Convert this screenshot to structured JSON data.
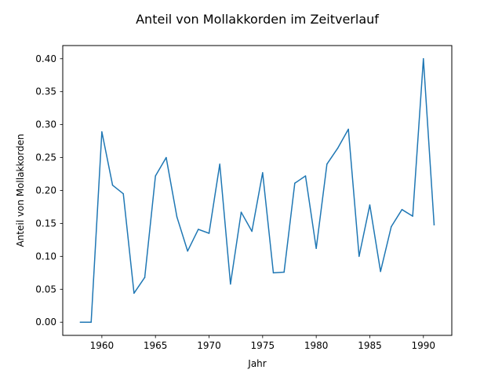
{
  "chart_data": {
    "type": "line",
    "title": "Anteil von Mollakkorden im Zeitverlauf",
    "xlabel": "Jahr",
    "ylabel": "Anteil von Mollakkorden",
    "xlim": [
      1956.35,
      1992.65
    ],
    "ylim": [
      -0.02,
      0.42
    ],
    "xticks": [
      1960,
      1965,
      1970,
      1975,
      1980,
      1985,
      1990
    ],
    "yticks": [
      0.0,
      0.05,
      0.1,
      0.15,
      0.2,
      0.25,
      0.3,
      0.35,
      0.4
    ],
    "ytick_labels": [
      "0.00",
      "0.05",
      "0.10",
      "0.15",
      "0.20",
      "0.25",
      "0.30",
      "0.35",
      "0.40"
    ],
    "grid": false,
    "colors": {
      "line": "#1f77b4"
    },
    "series": [
      {
        "x": [
          1958,
          1959,
          1960,
          1961,
          1962,
          1963,
          1964,
          1965,
          1966,
          1967,
          1968,
          1969,
          1970,
          1971,
          1972,
          1973,
          1974,
          1975,
          1976,
          1977,
          1978,
          1979,
          1980,
          1981,
          1982,
          1983,
          1984,
          1985,
          1986,
          1987,
          1988,
          1989,
          1990,
          1991
        ],
        "values": [
          0.0,
          0.0,
          0.289,
          0.208,
          0.195,
          0.044,
          0.068,
          0.222,
          0.25,
          0.16,
          0.108,
          0.141,
          0.135,
          0.24,
          0.058,
          0.167,
          0.138,
          0.227,
          0.075,
          0.076,
          0.211,
          0.222,
          0.112,
          0.24,
          0.264,
          0.293,
          0.1,
          0.178,
          0.077,
          0.145,
          0.171,
          0.161,
          0.4,
          0.148
        ]
      }
    ]
  }
}
